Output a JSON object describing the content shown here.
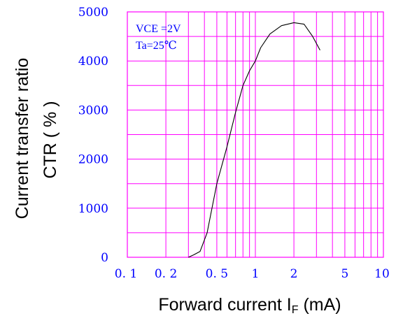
{
  "chart_data": {
    "type": "line",
    "title": "",
    "xlabel_main": "Forward current I",
    "xlabel_sub": "F",
    "xlabel_unit": " (mA)",
    "ylabel_line1": "Current transfer ratio",
    "ylabel_line2": "CTR ( % )",
    "xscale": "log",
    "xlim": [
      0.1,
      10
    ],
    "ylim": [
      0,
      5000
    ],
    "grid": true,
    "legend": "none",
    "x_ticks": [
      0.1,
      0.2,
      0.5,
      1,
      2,
      5,
      10
    ],
    "x_tick_labels": [
      "0. 1",
      "0. 2",
      "0. 5",
      "1",
      "2",
      "5",
      "10"
    ],
    "y_ticks": [
      0,
      1000,
      2000,
      3000,
      4000,
      5000
    ],
    "y_tick_labels": [
      "0",
      "1000",
      "2000",
      "3000",
      "4000",
      "5000"
    ],
    "annotation_lines": [
      "VCE =2V",
      "Ta=25℃"
    ],
    "series": [
      {
        "x": [
          0.3,
          0.33,
          0.37,
          0.42,
          0.5,
          0.6,
          0.7,
          0.8,
          0.9,
          1.0,
          1.1,
          1.3,
          1.6,
          2.0,
          2.4,
          2.8,
          3.2
        ],
        "y": [
          0,
          50,
          120,
          500,
          1500,
          2250,
          2950,
          3500,
          3800,
          4000,
          4270,
          4550,
          4720,
          4780,
          4750,
          4500,
          4220
        ]
      }
    ],
    "colors": {
      "grid": "#ff00ff",
      "tick_labels": "#0000ff",
      "curve": "#000000",
      "annotation": "#0000ff"
    }
  }
}
